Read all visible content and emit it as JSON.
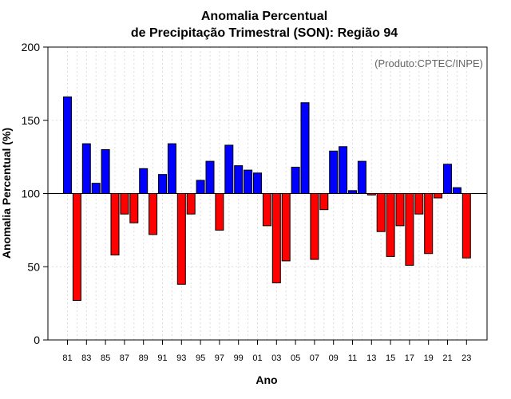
{
  "chart_data": {
    "type": "bar",
    "title_line1": "Anomalia Percentual",
    "title_line2": "de Precipitação Trimestral (SON): Região 94",
    "credit": "(Produto:CPTEC/INPE)",
    "xlabel": "Ano",
    "ylabel": "Anomalia Percentual (%)",
    "ylim": [
      0,
      200
    ],
    "yticks": [
      0,
      50,
      100,
      150,
      200
    ],
    "baseline": 100,
    "categories": [
      "81",
      "82",
      "83",
      "84",
      "85",
      "86",
      "87",
      "88",
      "89",
      "90",
      "91",
      "92",
      "93",
      "94",
      "95",
      "96",
      "97",
      "98",
      "99",
      "00",
      "01",
      "02",
      "03",
      "04",
      "05",
      "06",
      "07",
      "08",
      "09",
      "10",
      "11",
      "12",
      "13",
      "14",
      "15",
      "16",
      "17",
      "18",
      "19",
      "20",
      "21",
      "22",
      "23"
    ],
    "xtick_labels": [
      "81",
      "83",
      "85",
      "87",
      "89",
      "91",
      "93",
      "95",
      "97",
      "99",
      "01",
      "03",
      "05",
      "07",
      "09",
      "11",
      "13",
      "15",
      "17",
      "19",
      "21",
      "23"
    ],
    "values": [
      166,
      27,
      134,
      107,
      130,
      58,
      86,
      80,
      117,
      72,
      113,
      134,
      38,
      86,
      109,
      122,
      75,
      133,
      119,
      116,
      114,
      78,
      39,
      54,
      118,
      162,
      55,
      89,
      129,
      132,
      102,
      122,
      99,
      74,
      57,
      78,
      51,
      86,
      59,
      97,
      120,
      104,
      56
    ],
    "colors": {
      "above": "#0000ff",
      "below": "#ff0000"
    },
    "grid": true
  }
}
